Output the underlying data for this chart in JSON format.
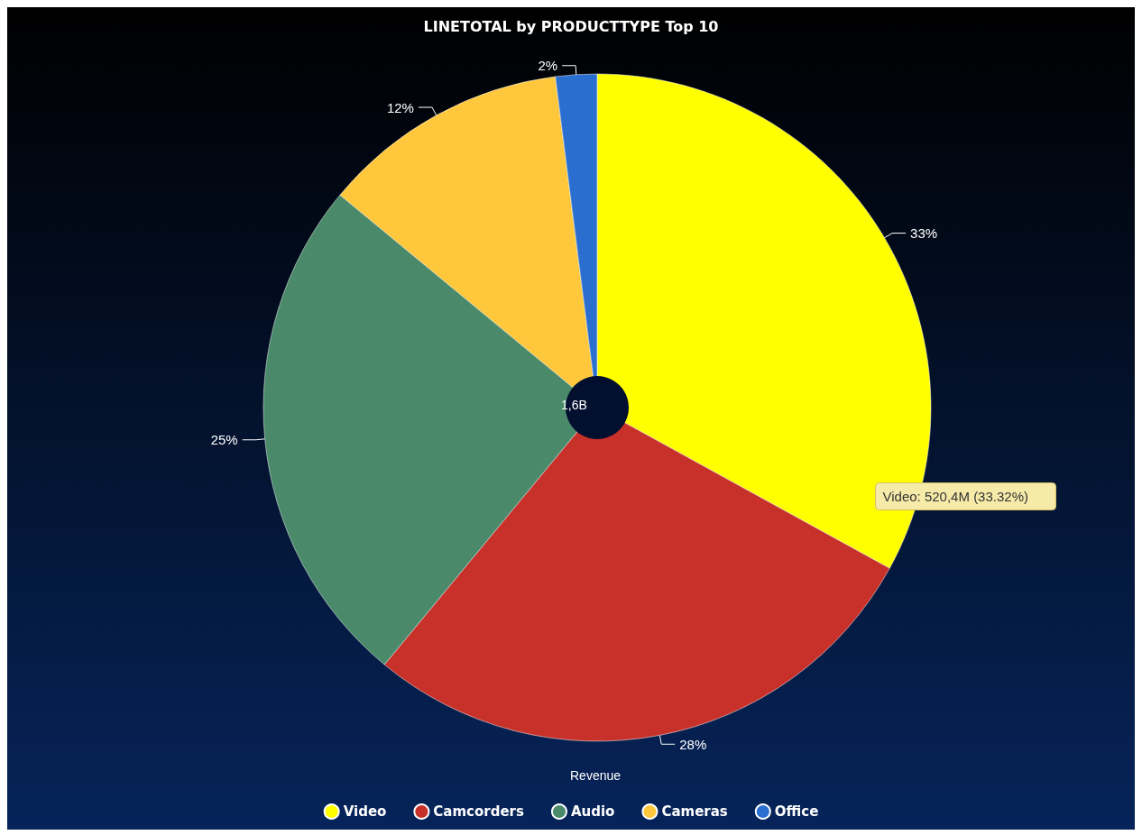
{
  "chart_data": {
    "type": "pie",
    "title": "LINETOTAL by PRODUCTTYPE Top 10",
    "categories": [
      "Video",
      "Camcorders",
      "Audio",
      "Cameras",
      "Office"
    ],
    "values": [
      33,
      28,
      25,
      12,
      2
    ],
    "value_labels": [
      "33%",
      "28%",
      "25%",
      "12%",
      "2%"
    ],
    "colors": [
      "#ffff00",
      "#c8302a",
      "#4a8a6a",
      "#ffc83c",
      "#2a6fd0"
    ],
    "annotations": [
      "1,6B",
      "Video: 520,4M (33.32%)",
      "Revenue"
    ],
    "legend": "bottom"
  }
}
